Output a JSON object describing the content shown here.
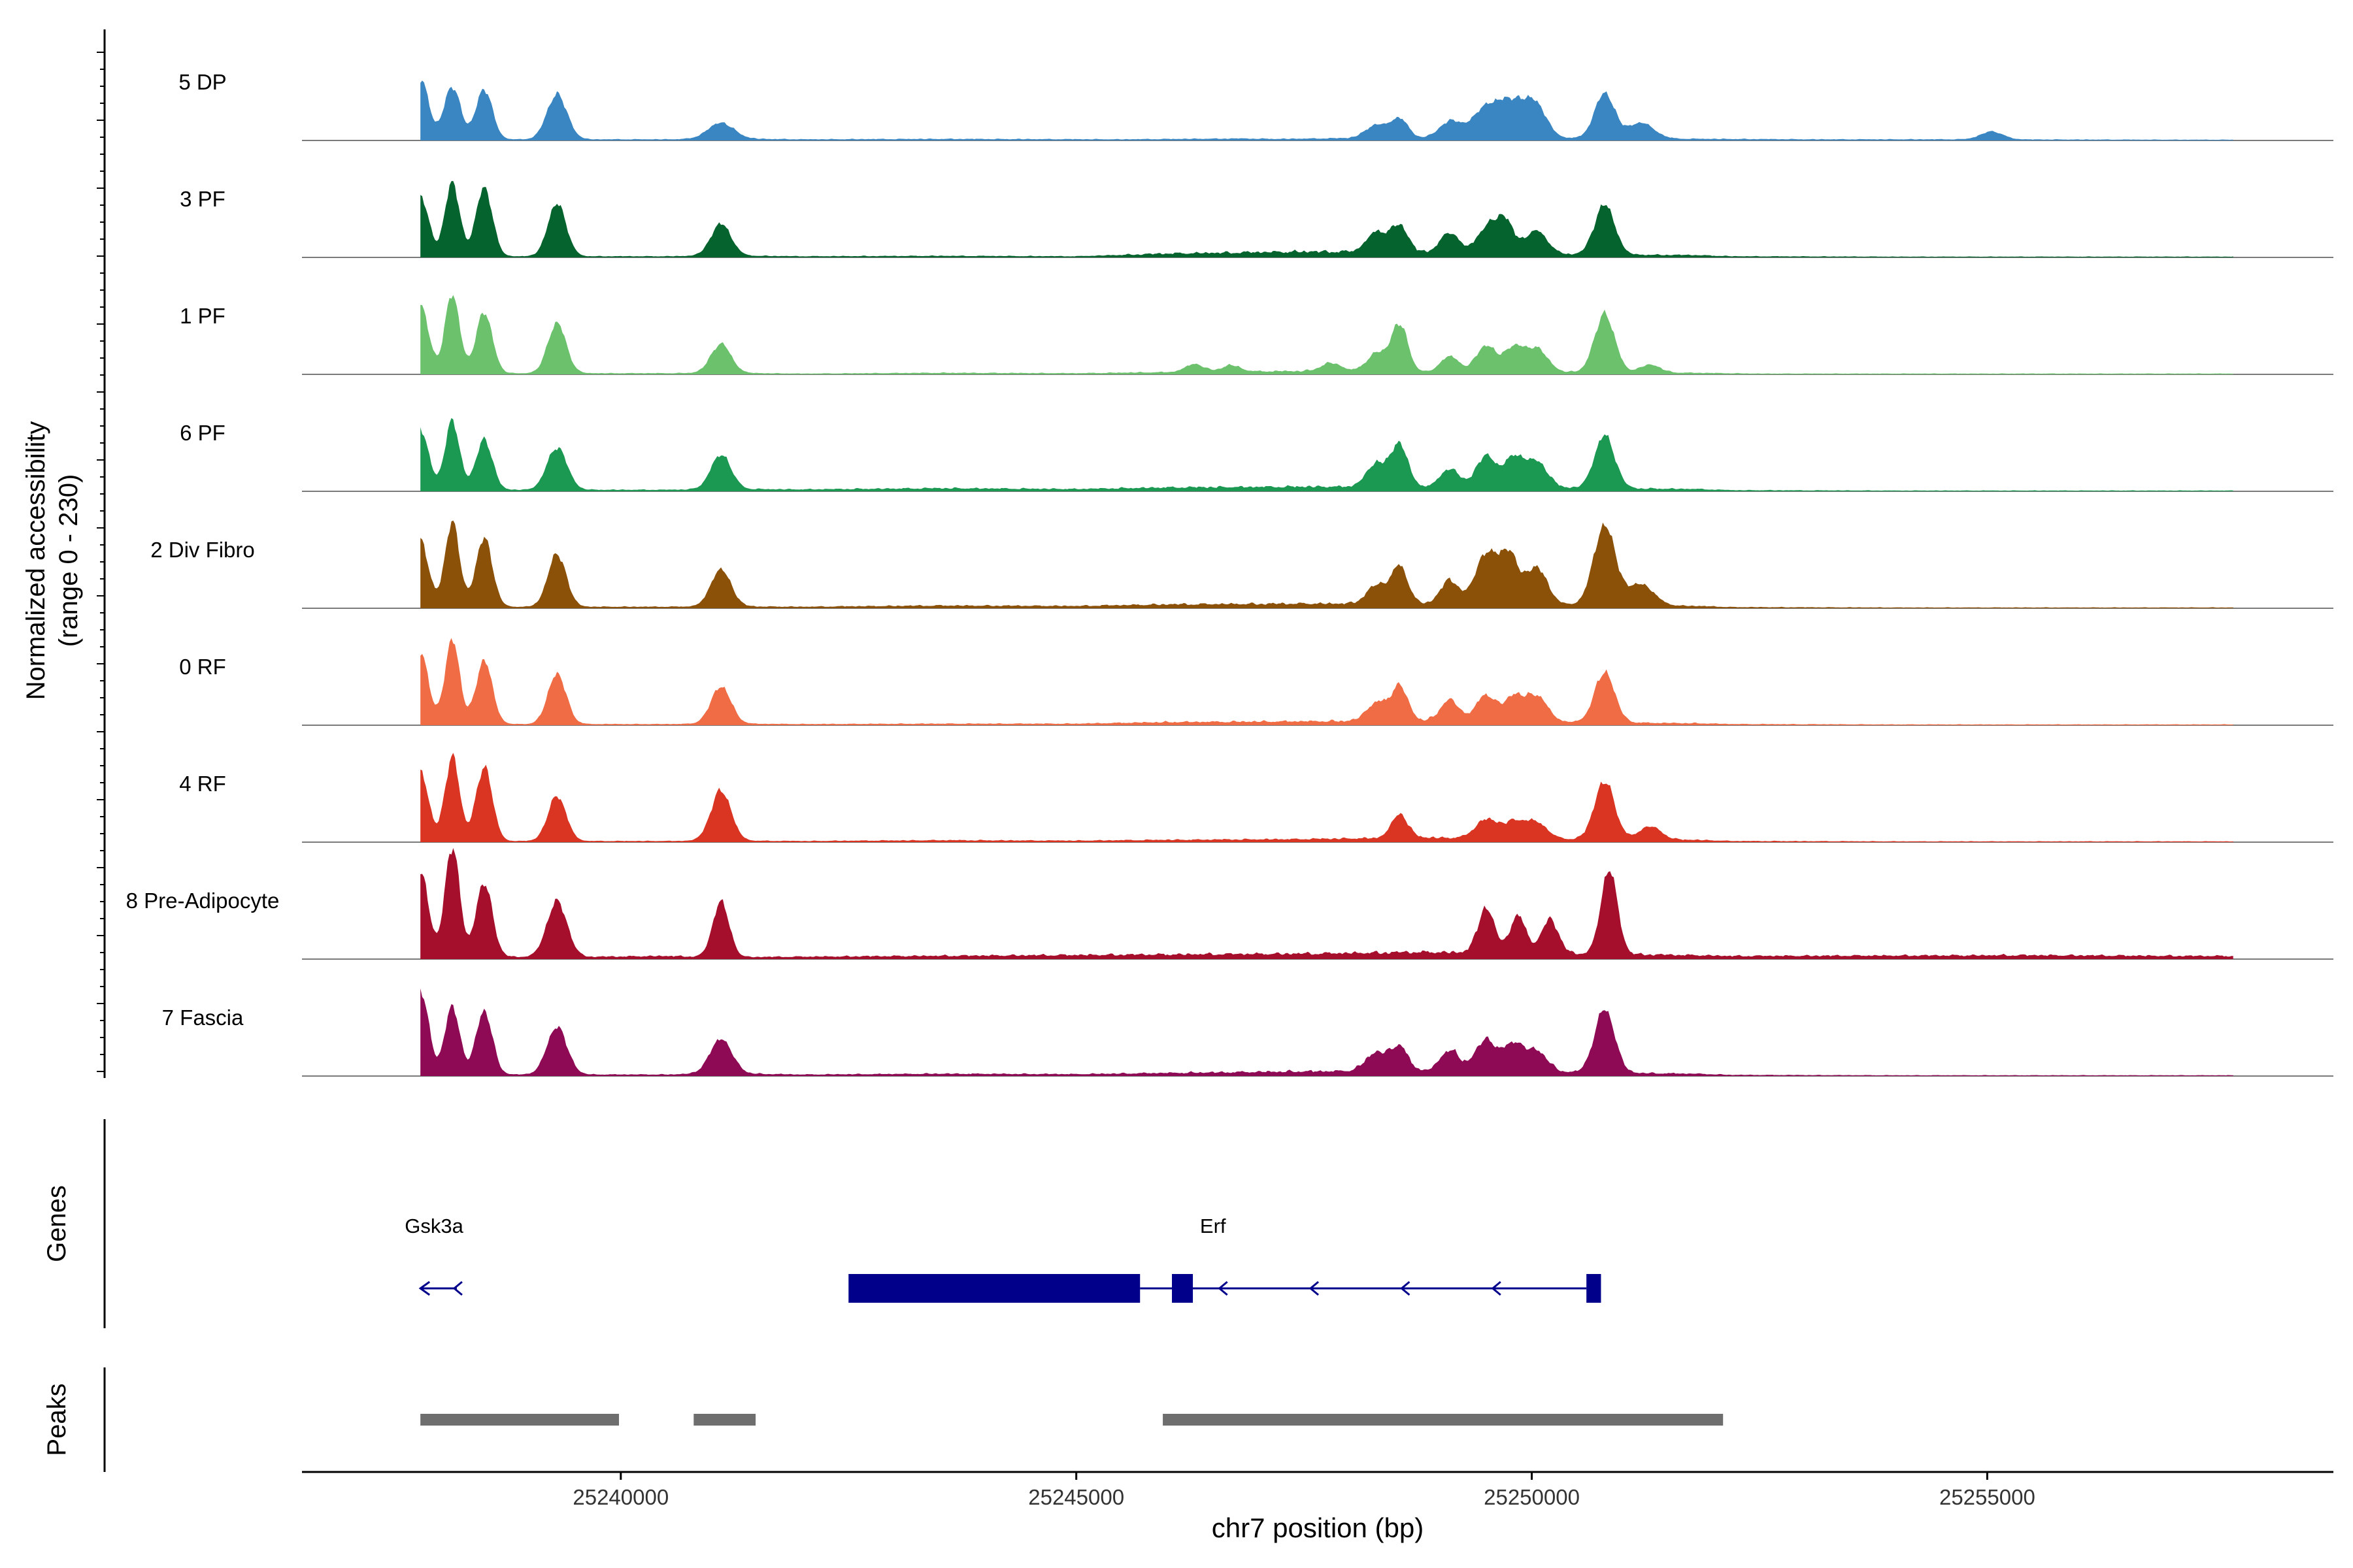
{
  "chart_data": {
    "type": "area",
    "title": "",
    "ylabel_line1": "Normalized accessibility",
    "ylabel_line2": "(range 0 - 230)",
    "y_range": [
      0,
      230
    ],
    "xlabel": "chr7 position (bp)",
    "x_range": [
      25236500,
      25258800
    ],
    "x_ticks": [
      {
        "value": 25240000,
        "label": "25240000"
      },
      {
        "value": 25245000,
        "label": "25245000"
      },
      {
        "value": 25250000,
        "label": "25250000"
      },
      {
        "value": 25255000,
        "label": "25255000"
      }
    ],
    "genes_label": "Genes",
    "peaks_label": "Peaks",
    "tracks": [
      {
        "name": "5 DP",
        "color": "#3a86c2",
        "bg": [
          [
            25240500,
            3
          ],
          [
            25241100,
            5
          ],
          [
            25242000,
            3
          ],
          [
            25243500,
            4
          ],
          [
            25245500,
            3
          ],
          [
            25246800,
            5
          ],
          [
            25247200,
            4
          ],
          [
            25248800,
            8
          ],
          [
            25250300,
            6
          ],
          [
            25252000,
            4
          ],
          [
            25253100,
            3
          ],
          [
            25254800,
            3
          ],
          [
            25257000,
            2
          ],
          [
            25257500,
            2
          ]
        ],
        "peaks": [
          [
            25237800,
            115,
            90
          ],
          [
            25238150,
            100,
            90
          ],
          [
            25238500,
            95,
            90
          ],
          [
            25239300,
            85,
            110
          ],
          [
            25241100,
            30,
            140
          ],
          [
            25248300,
            25,
            120
          ],
          [
            25248550,
            35,
            90
          ],
          [
            25249100,
            30,
            110
          ],
          [
            25249500,
            55,
            160
          ],
          [
            25249800,
            60,
            150
          ],
          [
            25250050,
            55,
            120
          ],
          [
            25250800,
            85,
            110
          ],
          [
            25251200,
            30,
            140
          ],
          [
            25255050,
            15,
            120
          ]
        ]
      },
      {
        "name": "3 PF",
        "color": "#05632d",
        "bg": [
          [
            25240500,
            3
          ],
          [
            25241100,
            5
          ],
          [
            25242000,
            3
          ],
          [
            25243500,
            4
          ],
          [
            25245000,
            3
          ],
          [
            25246000,
            10
          ],
          [
            25247500,
            15
          ],
          [
            25248800,
            14
          ],
          [
            25250300,
            8
          ],
          [
            25251800,
            6
          ],
          [
            25252200,
            3
          ],
          [
            25254000,
            2
          ],
          [
            25256800,
            2
          ],
          [
            25257500,
            2
          ]
        ],
        "peaks": [
          [
            25237800,
            115,
            90
          ],
          [
            25238150,
            140,
            80
          ],
          [
            25238500,
            130,
            90
          ],
          [
            25239300,
            100,
            100
          ],
          [
            25241100,
            60,
            110
          ],
          [
            25248300,
            38,
            110
          ],
          [
            25248550,
            50,
            90
          ],
          [
            25249100,
            38,
            100
          ],
          [
            25249500,
            44,
            110
          ],
          [
            25249700,
            62,
            100
          ],
          [
            25250050,
            44,
            120
          ],
          [
            25250800,
            95,
            110
          ]
        ]
      },
      {
        "name": "1 PF",
        "color": "#6cc16d",
        "bg": [
          [
            25240500,
            3
          ],
          [
            25241100,
            4
          ],
          [
            25242000,
            2
          ],
          [
            25243500,
            4
          ],
          [
            25245000,
            3
          ],
          [
            25246500,
            7
          ],
          [
            25247800,
            9
          ],
          [
            25248500,
            6
          ],
          [
            25250300,
            6
          ],
          [
            25251800,
            4
          ],
          [
            25252500,
            2
          ],
          [
            25254000,
            2
          ],
          [
            25256000,
            2
          ],
          [
            25257500,
            2
          ]
        ],
        "peaks": [
          [
            25237800,
            130,
            90
          ],
          [
            25238150,
            150,
            80
          ],
          [
            25238500,
            115,
            90
          ],
          [
            25239300,
            95,
            100
          ],
          [
            25241100,
            55,
            110
          ],
          [
            25246300,
            15,
            100
          ],
          [
            25246700,
            12,
            100
          ],
          [
            25247800,
            15,
            110
          ],
          [
            25248300,
            35,
            110
          ],
          [
            25248550,
            90,
            90
          ],
          [
            25249100,
            30,
            100
          ],
          [
            25249500,
            50,
            110
          ],
          [
            25249800,
            45,
            100
          ],
          [
            25250050,
            45,
            120
          ],
          [
            25250800,
            110,
            110
          ],
          [
            25251300,
            15,
            110
          ]
        ]
      },
      {
        "name": "6 PF",
        "color": "#1b9852",
        "bg": [
          [
            25240500,
            4
          ],
          [
            25241100,
            6
          ],
          [
            25242000,
            5
          ],
          [
            25243500,
            8
          ],
          [
            25245000,
            6
          ],
          [
            25246000,
            10
          ],
          [
            25247500,
            12
          ],
          [
            25248700,
            12
          ],
          [
            25250300,
            9
          ],
          [
            25251800,
            6
          ],
          [
            25252200,
            3
          ],
          [
            25254000,
            2
          ],
          [
            25256800,
            2
          ],
          [
            25257500,
            2
          ]
        ],
        "peaks": [
          [
            25237800,
            115,
            90
          ],
          [
            25238150,
            130,
            80
          ],
          [
            25238500,
            95,
            90
          ],
          [
            25239300,
            80,
            110
          ],
          [
            25241100,
            65,
            110
          ],
          [
            25248300,
            45,
            110
          ],
          [
            25248550,
            80,
            90
          ],
          [
            25249100,
            35,
            100
          ],
          [
            25249500,
            60,
            110
          ],
          [
            25249800,
            55,
            100
          ],
          [
            25250050,
            50,
            120
          ],
          [
            25250800,
            100,
            110
          ]
        ]
      },
      {
        "name": "2 Div Fibro",
        "color": "#8b5109",
        "bg": [
          [
            25240500,
            4
          ],
          [
            25241100,
            5
          ],
          [
            25242000,
            4
          ],
          [
            25243500,
            7
          ],
          [
            25245000,
            6
          ],
          [
            25246000,
            10
          ],
          [
            25247500,
            12
          ],
          [
            25248800,
            12
          ],
          [
            25250300,
            9
          ],
          [
            25251800,
            6
          ],
          [
            25252200,
            3
          ],
          [
            25254000,
            2
          ],
          [
            25257500,
            2
          ]
        ],
        "peaks": [
          [
            25237800,
            125,
            90
          ],
          [
            25238150,
            160,
            80
          ],
          [
            25238500,
            130,
            90
          ],
          [
            25239300,
            100,
            100
          ],
          [
            25241100,
            70,
            110
          ],
          [
            25248300,
            35,
            110
          ],
          [
            25248550,
            70,
            90
          ],
          [
            25249100,
            45,
            100
          ],
          [
            25249500,
            95,
            120
          ],
          [
            25249750,
            90,
            100
          ],
          [
            25250050,
            70,
            120
          ],
          [
            25250800,
            150,
            120
          ],
          [
            25251200,
            40,
            140
          ]
        ]
      },
      {
        "name": "0 RF",
        "color": "#f06c45",
        "bg": [
          [
            25240500,
            3
          ],
          [
            25241100,
            4
          ],
          [
            25242000,
            3
          ],
          [
            25243500,
            4
          ],
          [
            25245000,
            4
          ],
          [
            25246000,
            8
          ],
          [
            25247500,
            10
          ],
          [
            25248800,
            12
          ],
          [
            25250300,
            8
          ],
          [
            25251800,
            5
          ],
          [
            25252200,
            3
          ],
          [
            25254000,
            2
          ],
          [
            25257500,
            2
          ]
        ],
        "peaks": [
          [
            25237800,
            135,
            90
          ],
          [
            25238150,
            160,
            80
          ],
          [
            25238500,
            120,
            90
          ],
          [
            25239300,
            95,
            100
          ],
          [
            25241100,
            70,
            110
          ],
          [
            25248300,
            35,
            110
          ],
          [
            25248550,
            65,
            90
          ],
          [
            25249100,
            40,
            100
          ],
          [
            25249500,
            50,
            110
          ],
          [
            25249800,
            45,
            100
          ],
          [
            25250050,
            50,
            120
          ],
          [
            25250800,
            95,
            110
          ]
        ]
      },
      {
        "name": "4 RF",
        "color": "#d93522",
        "bg": [
          [
            25240500,
            3
          ],
          [
            25241100,
            4
          ],
          [
            25242000,
            3
          ],
          [
            25243500,
            5
          ],
          [
            25245000,
            4
          ],
          [
            25246000,
            6
          ],
          [
            25247500,
            8
          ],
          [
            25248800,
            12
          ],
          [
            25250300,
            8
          ],
          [
            25251800,
            6
          ],
          [
            25252200,
            3
          ],
          [
            25254000,
            2
          ],
          [
            25257500,
            2
          ]
        ],
        "peaks": [
          [
            25237800,
            130,
            90
          ],
          [
            25238150,
            160,
            80
          ],
          [
            25238500,
            140,
            90
          ],
          [
            25239300,
            85,
            100
          ],
          [
            25241100,
            95,
            110
          ],
          [
            25248550,
            45,
            90
          ],
          [
            25249500,
            35,
            120
          ],
          [
            25249800,
            30,
            120
          ],
          [
            25250050,
            30,
            120
          ],
          [
            25250800,
            110,
            110
          ],
          [
            25251300,
            25,
            120
          ]
        ]
      },
      {
        "name": "8 Pre-Adipocyte",
        "color": "#a50f2b",
        "bg": [
          [
            25239700,
            6
          ],
          [
            25240500,
            8
          ],
          [
            25241100,
            5
          ],
          [
            25246000,
            12
          ],
          [
            25247500,
            14
          ],
          [
            25248800,
            18
          ],
          [
            25250300,
            15
          ],
          [
            25251800,
            10
          ],
          [
            25252200,
            8
          ],
          [
            25255500,
            10
          ],
          [
            25257300,
            8
          ]
        ],
        "peaks": [
          [
            25237800,
            160,
            90
          ],
          [
            25238150,
            210,
            80
          ],
          [
            25238500,
            140,
            90
          ],
          [
            25239300,
            105,
            110
          ],
          [
            25241100,
            105,
            90
          ],
          [
            25249500,
            85,
            90
          ],
          [
            25249850,
            70,
            90
          ],
          [
            25250200,
            65,
            90
          ],
          [
            25250850,
            160,
            90
          ]
        ]
      },
      {
        "name": "7 Fascia",
        "color": "#8f0a55",
        "bg": [
          [
            25240500,
            4
          ],
          [
            25241100,
            7
          ],
          [
            25242000,
            4
          ],
          [
            25243500,
            6
          ],
          [
            25245000,
            5
          ],
          [
            25246000,
            8
          ],
          [
            25247500,
            12
          ],
          [
            25248800,
            14
          ],
          [
            25250300,
            10
          ],
          [
            25251800,
            6
          ],
          [
            25252200,
            3
          ],
          [
            25254000,
            2
          ],
          [
            25257500,
            2
          ]
        ],
        "peaks": [
          [
            25237800,
            160,
            90
          ],
          [
            25238150,
            130,
            80
          ],
          [
            25238500,
            120,
            90
          ],
          [
            25239300,
            90,
            110
          ],
          [
            25241100,
            65,
            120
          ],
          [
            25248300,
            35,
            120
          ],
          [
            25248550,
            45,
            90
          ],
          [
            25249100,
            40,
            100
          ],
          [
            25249500,
            60,
            120
          ],
          [
            25249800,
            50,
            100
          ],
          [
            25250050,
            40,
            120
          ],
          [
            25250800,
            120,
            110
          ]
        ]
      }
    ],
    "genes": [
      {
        "name": "Gsk3a",
        "color": "#00008b",
        "strand": "-",
        "line": [
          25237800,
          25238200
        ],
        "exons": [],
        "label_pos": 25237950
      },
      {
        "name": "Erf",
        "color": "#00008b",
        "strand": "-",
        "line": [
          25245700,
          25250600
        ],
        "exons": [
          [
            25242500,
            25245700
          ],
          [
            25246050,
            25246280
          ],
          [
            25250600,
            25250760
          ]
        ],
        "arrows": [
          25246600,
          25247600,
          25248600,
          25249600
        ],
        "label_pos": 25246500
      }
    ],
    "peak_regions": [
      [
        25237800,
        25239980
      ],
      [
        25240800,
        25241480
      ],
      [
        25245950,
        25252100
      ]
    ],
    "peak_color": "#6e6e6e"
  }
}
